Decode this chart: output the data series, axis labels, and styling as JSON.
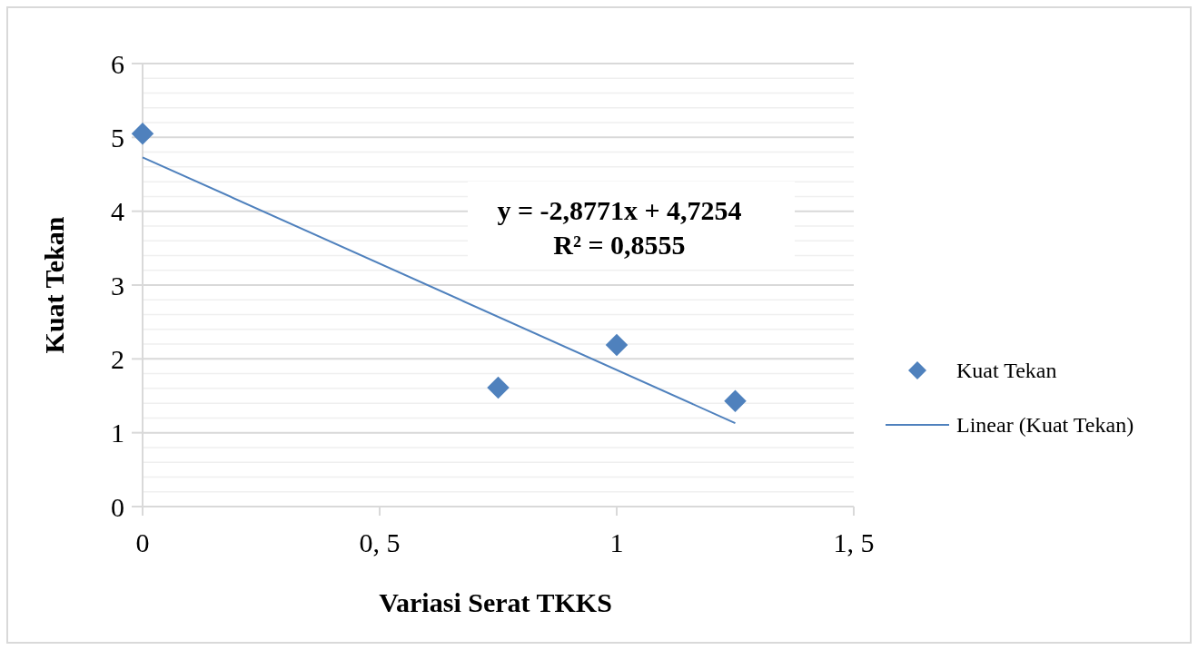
{
  "chart_data": {
    "type": "scatter",
    "xlabel": "Variasi Serat TKKS",
    "ylabel": "Kuat Tekan",
    "xlim": [
      0,
      1.5
    ],
    "xticks": [
      0,
      {
        "value": 0.5,
        "label": "0, 5"
      },
      1,
      {
        "value": 1.5,
        "label": "1, 5"
      }
    ],
    "ylim": [
      0,
      6
    ],
    "yticks": [
      0,
      {
        "value": 0.2,
        "label": null
      },
      {
        "value": 0.4,
        "label": null
      },
      {
        "value": 0.6,
        "label": null
      },
      {
        "value": 0.8,
        "label": null
      },
      1,
      {
        "value": 1.2,
        "label": null
      },
      {
        "value": 1.4,
        "label": null
      },
      {
        "value": 1.6,
        "label": null
      },
      {
        "value": 1.8,
        "label": null
      },
      2,
      {
        "value": 2.2,
        "label": null
      },
      {
        "value": 2.4,
        "label": null
      },
      {
        "value": 2.6,
        "label": null
      },
      {
        "value": 2.8,
        "label": null
      },
      3,
      {
        "value": 3.2,
        "label": null
      },
      {
        "value": 3.4,
        "label": null
      },
      {
        "value": 3.6,
        "label": null
      },
      {
        "value": 3.8,
        "label": null
      },
      4,
      {
        "value": 4.2,
        "label": null
      },
      {
        "value": 4.4,
        "label": null
      },
      {
        "value": 4.6,
        "label": null
      },
      {
        "value": 4.8,
        "label": null
      },
      5,
      {
        "value": 5.2,
        "label": null
      },
      {
        "value": 5.4,
        "label": null
      },
      {
        "value": 5.6,
        "label": null
      },
      {
        "value": 5.8,
        "label": null
      },
      6
    ],
    "grid": "y",
    "legend": "right",
    "annotations": [
      "y = -2,8771x + 4,7254",
      "R² = 0,8555"
    ],
    "series": [
      {
        "name": "Kuat Tekan",
        "marker": "diamond",
        "color": "#4f81bd",
        "x": [
          0,
          0.75,
          1,
          1.25
        ],
        "values": [
          5.05,
          1.61,
          2.19,
          1.43
        ]
      },
      {
        "name": "Linear (Kuat Tekan)",
        "type": "line",
        "color": "#4f81bd",
        "x": [
          0,
          1.25
        ],
        "values": [
          4.73,
          1.13
        ]
      }
    ]
  }
}
